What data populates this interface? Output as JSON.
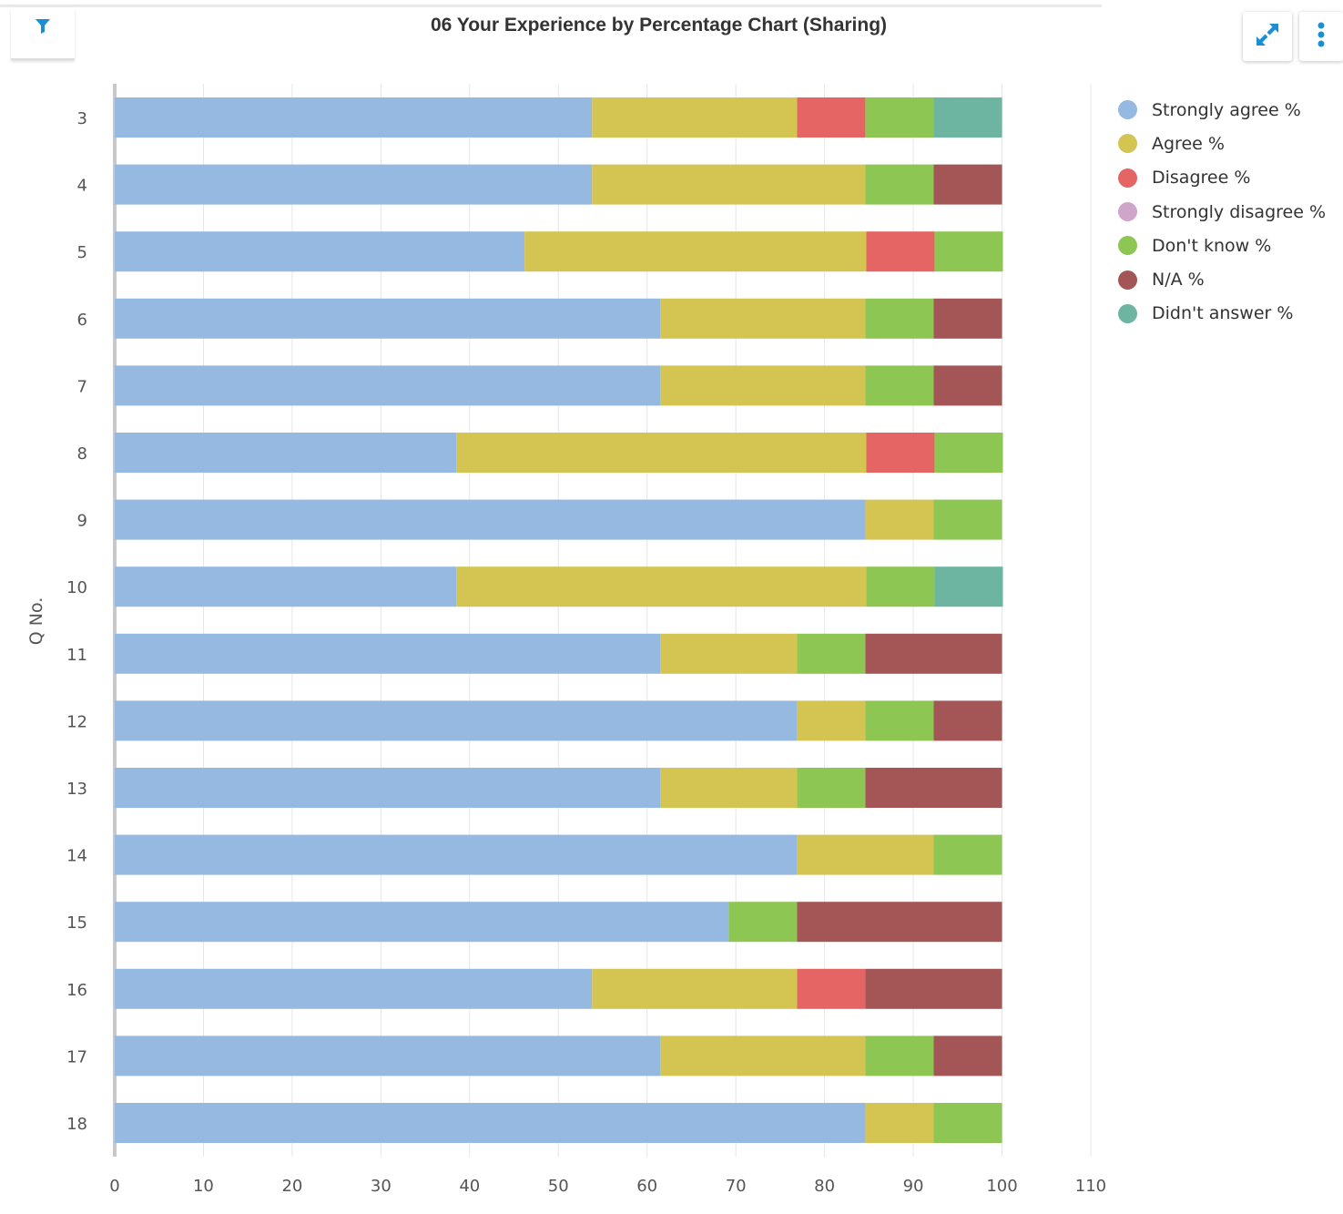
{
  "page": {
    "cut_title": "... experience by percentage chart (sharing)"
  },
  "header": {
    "title": "06 Your Experience by Percentage Chart (Sharing)",
    "filter_icon": "filter-icon",
    "expand_icon": "expand-icon",
    "menu_icon": "vertical-dots-icon",
    "accent_color": "#1a8fd6"
  },
  "chart_data": {
    "type": "bar",
    "orientation": "horizontal",
    "stacked": true,
    "title": "06 Your Experience by Percentage Chart (Sharing)",
    "ylabel": "Q No.",
    "xlabel": "",
    "xlim": [
      0,
      110
    ],
    "x_ticks": [
      0,
      10,
      20,
      30,
      40,
      50,
      60,
      70,
      80,
      90,
      100,
      110
    ],
    "grid": true,
    "legend_position": "right",
    "categories": [
      "3",
      "4",
      "5",
      "6",
      "7",
      "8",
      "9",
      "10",
      "11",
      "12",
      "13",
      "14",
      "15",
      "16",
      "17",
      "18"
    ],
    "series": [
      {
        "name": "Strongly agree %",
        "color": "#95b9e0",
        "values": [
          53.8,
          53.8,
          46.2,
          61.5,
          61.5,
          38.5,
          84.6,
          38.5,
          61.5,
          76.9,
          61.5,
          76.9,
          69.2,
          53.8,
          61.5,
          84.6
        ]
      },
      {
        "name": "Agree %",
        "color": "#d4c452",
        "values": [
          23.1,
          30.8,
          38.5,
          23.1,
          23.1,
          46.2,
          7.7,
          46.2,
          15.4,
          7.7,
          15.4,
          15.4,
          0,
          23.1,
          23.1,
          7.7
        ]
      },
      {
        "name": "Disagree %",
        "color": "#e56464",
        "values": [
          7.7,
          0,
          7.7,
          0,
          0,
          7.7,
          0,
          0,
          0,
          0,
          0,
          0,
          0,
          7.7,
          0,
          0
        ]
      },
      {
        "name": "Strongly disagree %",
        "color": "#cfa5c9",
        "values": [
          0,
          0,
          0,
          0,
          0,
          0,
          0,
          0,
          0,
          0,
          0,
          0,
          0,
          0,
          0,
          0
        ]
      },
      {
        "name": "Don't know %",
        "color": "#8dc653",
        "values": [
          7.7,
          7.7,
          7.7,
          7.7,
          7.7,
          7.7,
          7.7,
          7.7,
          7.7,
          7.7,
          7.7,
          7.7,
          7.7,
          0,
          7.7,
          7.7
        ]
      },
      {
        "name": "N/A %",
        "color": "#a45656",
        "values": [
          0,
          7.7,
          0,
          7.7,
          7.7,
          0,
          0,
          0,
          15.4,
          7.7,
          15.4,
          0,
          23.1,
          15.4,
          7.7,
          0
        ]
      },
      {
        "name": "Didn't answer %",
        "color": "#6db5a1",
        "values": [
          7.7,
          0,
          0,
          0,
          0,
          0,
          0,
          7.7,
          0,
          0,
          0,
          0,
          0,
          0,
          0,
          0
        ]
      }
    ]
  }
}
